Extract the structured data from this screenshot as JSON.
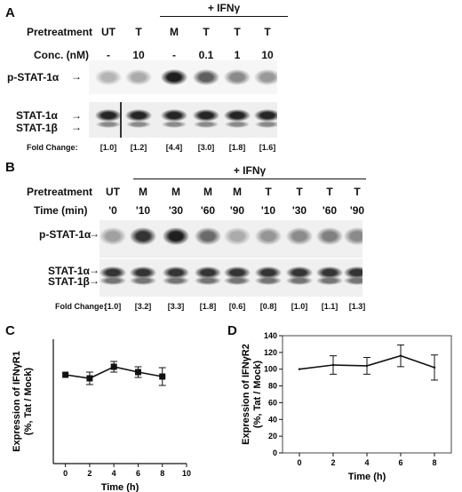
{
  "panelA": {
    "letter": "A",
    "ifn_label": "+ IFNγ",
    "row1_label": "Pretreatment",
    "row2_label": "Conc. (nM)",
    "pretreatment": [
      "UT",
      "T",
      "M",
      "T",
      "T",
      "T"
    ],
    "conc": [
      "-",
      "10",
      "-",
      "0.1",
      "1",
      "10"
    ],
    "band_pstat": "p-STAT-1α",
    "band_stat1a": "STAT-1α",
    "band_stat1b": "STAT-1β",
    "fold_label": "Fold Change:",
    "fold_values": [
      "[1.0]",
      "[1.2]",
      "[4.4]",
      "[3.0]",
      "[1.8]",
      "[1.6]"
    ],
    "pstat_intensity": [
      0.25,
      0.3,
      0.95,
      0.65,
      0.45,
      0.38
    ]
  },
  "panelB": {
    "letter": "B",
    "ifn_label": "+ IFNγ",
    "row1_label": "Pretreatment",
    "row2_label": "Time (min)",
    "pretreatment": [
      "UT",
      "M",
      "M",
      "M",
      "M",
      "T",
      "T",
      "T",
      "T"
    ],
    "time": [
      "'0",
      "'10",
      "'30",
      "'60",
      "'90",
      "'10",
      "'30",
      "'60",
      "'90"
    ],
    "band_pstat": "p-STAT-1α",
    "band_stat1a": "STAT-1α",
    "band_stat1b": "STAT-1β",
    "fold_label": "Fold Change:",
    "fold_values": [
      "[1.0]",
      "[3.2]",
      "[3.3]",
      "[1.8]",
      "[0.6]",
      "[0.8]",
      "[1.0]",
      "[1.1]",
      "[1.3]"
    ],
    "pstat_intensity": [
      0.35,
      0.85,
      0.95,
      0.6,
      0.3,
      0.4,
      0.45,
      0.5,
      0.45
    ]
  },
  "chart_data": [
    {
      "panel": "C",
      "type": "line",
      "ylabel_line1": "Expression of IFNγR1",
      "ylabel_line2": "(%, Tat / Mock)",
      "xlabel": "Time (h)",
      "x": [
        0,
        2,
        4,
        6,
        8
      ],
      "y": [
        100,
        96,
        109,
        103,
        98
      ],
      "err": [
        0,
        7,
        6,
        6,
        10
      ],
      "xlim": [
        -1,
        10
      ],
      "ylim": [
        0,
        140
      ],
      "xticks": [
        0,
        2,
        4,
        6,
        8,
        10
      ],
      "yticks": [],
      "marker": "square",
      "box": false
    },
    {
      "panel": "D",
      "type": "line",
      "ylabel_line1": "Expression of IFNγR2",
      "ylabel_line2": "(%, Tat / Mock)",
      "xlabel": "Time (h)",
      "x": [
        0,
        2,
        4,
        6,
        8
      ],
      "y": [
        100,
        105,
        104,
        116,
        102
      ],
      "err": [
        0,
        11,
        10,
        13,
        15
      ],
      "xlim": [
        -1,
        9
      ],
      "ylim": [
        0,
        140
      ],
      "xticks": [
        0,
        2,
        4,
        6,
        8
      ],
      "yticks": [
        0,
        20,
        40,
        60,
        80,
        100,
        120,
        140
      ],
      "marker": "none",
      "box": true
    }
  ]
}
